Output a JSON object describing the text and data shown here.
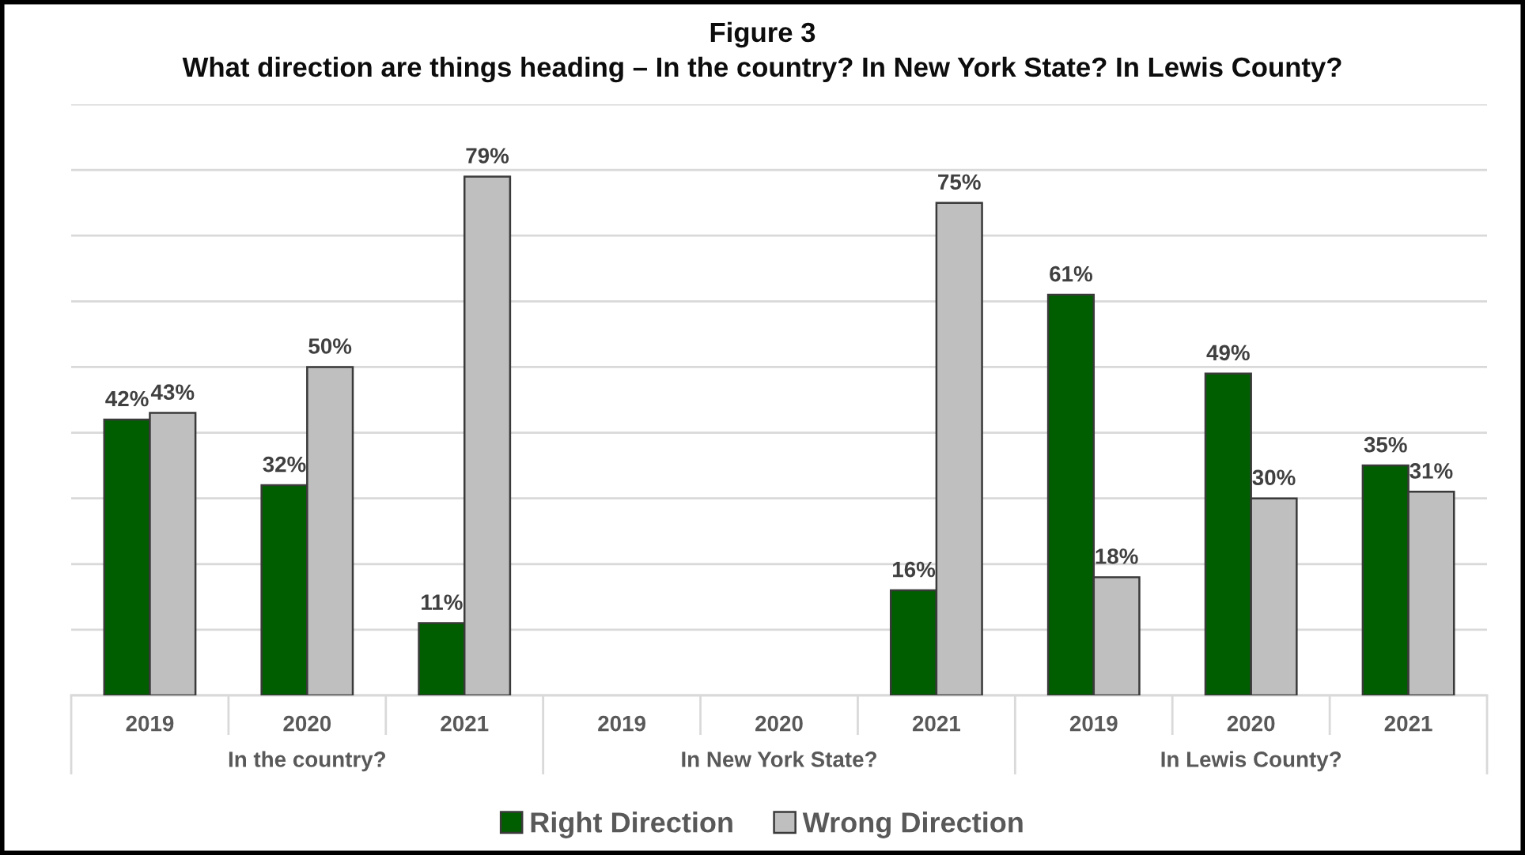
{
  "chart_data": {
    "type": "bar",
    "title": "Figure 3",
    "subtitle": "What direction are things heading – In the country? In New York State? In Lewis County?",
    "categories": [
      "2019",
      "2020",
      "2021",
      "2019",
      "2020",
      "2021",
      "2019",
      "2020",
      "2021"
    ],
    "series": [
      {
        "name": "Right Direction",
        "color": "#005e00",
        "values": [
          42,
          32,
          11,
          null,
          null,
          16,
          61,
          49,
          35
        ],
        "value_labels": [
          "42%",
          "32%",
          "11%",
          null,
          null,
          "16%",
          "61%",
          "49%",
          "35%"
        ]
      },
      {
        "name": "Wrong Direction",
        "color": "#bfbfbf",
        "values": [
          43,
          50,
          79,
          null,
          null,
          75,
          18,
          30,
          31
        ],
        "value_labels": [
          "43%",
          "50%",
          "79%",
          null,
          null,
          "75%",
          "18%",
          "30%",
          "31%"
        ]
      }
    ],
    "annotations": [
      "In the country?",
      "In New York State?",
      "In Lewis County?"
    ],
    "ylim": [
      0,
      90
    ],
    "yticks": [
      {
        "value": 0,
        "label": null
      },
      {
        "value": 10,
        "label": null
      },
      {
        "value": 20,
        "label": null
      },
      {
        "value": 30,
        "label": null
      },
      {
        "value": 40,
        "label": null
      },
      {
        "value": 50,
        "label": null
      },
      {
        "value": 60,
        "label": null
      },
      {
        "value": 70,
        "label": null
      },
      {
        "value": 80,
        "label": null
      },
      {
        "value": 90,
        "label": null
      }
    ],
    "tick_labels": "x",
    "grid": "y",
    "legend": "bottom"
  }
}
